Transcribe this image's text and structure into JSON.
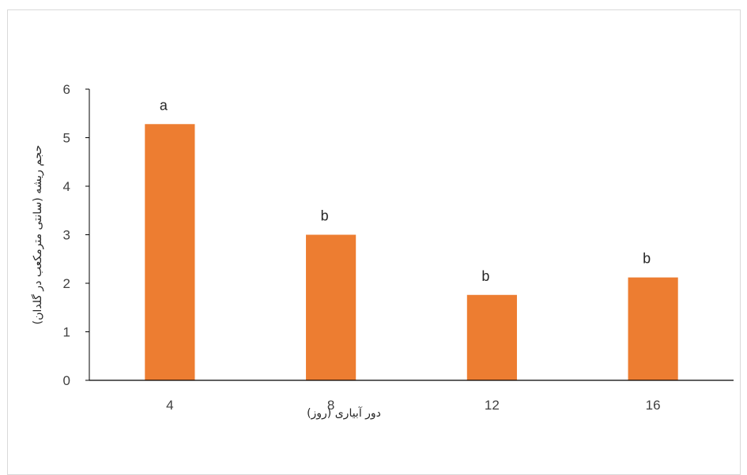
{
  "chart_data": {
    "type": "bar",
    "categories": [
      "4",
      "8",
      "12",
      "16"
    ],
    "values": [
      5.28,
      3.0,
      1.76,
      2.12
    ],
    "data_labels": [
      "a",
      "b",
      "b",
      "b"
    ],
    "xlabel": "دور آبیاری (روز)",
    "ylabel": "حجم ریشه (سانتی مترمکعب در گلدان)",
    "ylim": [
      0,
      6
    ],
    "yticks": [
      "0",
      "1",
      "2",
      "3",
      "4",
      "5",
      "6"
    ],
    "grid": false,
    "bar_color": "#ED7D31",
    "axis_color": "#000000"
  }
}
